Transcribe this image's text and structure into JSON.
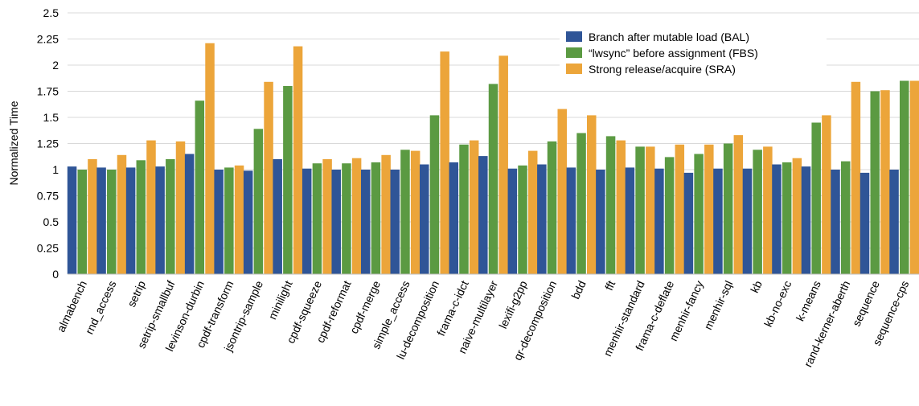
{
  "chart_data": {
    "type": "bar",
    "ylabel": "Normalized Time",
    "xlabel": "",
    "ylim": [
      0,
      2.5
    ],
    "yticks": [
      "0",
      "0.25",
      "0.5",
      "0.75",
      "1",
      "1.25",
      "1.5",
      "1.75",
      "2",
      "2.25",
      "2.5"
    ],
    "grid": "horizontal",
    "legend_position": "top-right",
    "categories": [
      "almabench",
      "rnd_access",
      "setrip",
      "setrip-smallbuf",
      "levinson-durbin",
      "cpdf-transform",
      "jsontrip-sample",
      "minilight",
      "cpdf-squeeze",
      "cpdf-reformat",
      "cpdf-merge",
      "simple_access",
      "lu-decomposition",
      "frama-c-idct",
      "naive-multilayer",
      "lexifi-g2pp",
      "qr-decomposition",
      "bdd",
      "fft",
      "menhir-standard",
      "frama-c-deflate",
      "menhir-fancy",
      "menhir-sql",
      "kb",
      "kb-no-exc",
      "k-means",
      "rand-kerner-aberth",
      "sequence",
      "sequence-cps"
    ],
    "series": [
      {
        "name": "Branch after mutable load (BAL)",
        "color": "#2f5597",
        "values": [
          1.03,
          1.02,
          1.02,
          1.03,
          1.15,
          1.0,
          0.99,
          1.1,
          1.01,
          1.0,
          1.0,
          1.0,
          1.05,
          1.07,
          1.13,
          1.01,
          1.05,
          1.02,
          1.0,
          1.02,
          1.01,
          0.97,
          1.01,
          1.01,
          1.05,
          1.03,
          1.0,
          0.97,
          1.0
        ]
      },
      {
        "name": "“lwsync” before assignment (FBS)",
        "color": "#5b9a42",
        "values": [
          1.0,
          1.0,
          1.09,
          1.1,
          1.66,
          1.02,
          1.39,
          1.8,
          1.06,
          1.06,
          1.07,
          1.19,
          1.52,
          1.24,
          1.82,
          1.04,
          1.27,
          1.35,
          1.32,
          1.22,
          1.12,
          1.15,
          1.25,
          1.19,
          1.07,
          1.45,
          1.08,
          1.75,
          1.85
        ]
      },
      {
        "name": "Strong release/acquire (SRA)",
        "color": "#eca53a",
        "values": [
          1.1,
          1.14,
          1.28,
          1.27,
          2.21,
          1.04,
          1.84,
          2.18,
          1.1,
          1.11,
          1.14,
          1.18,
          2.13,
          1.28,
          2.09,
          1.18,
          1.58,
          1.52,
          1.28,
          1.22,
          1.24,
          1.24,
          1.33,
          1.22,
          1.11,
          1.52,
          1.84,
          1.76,
          1.85
        ]
      }
    ]
  }
}
